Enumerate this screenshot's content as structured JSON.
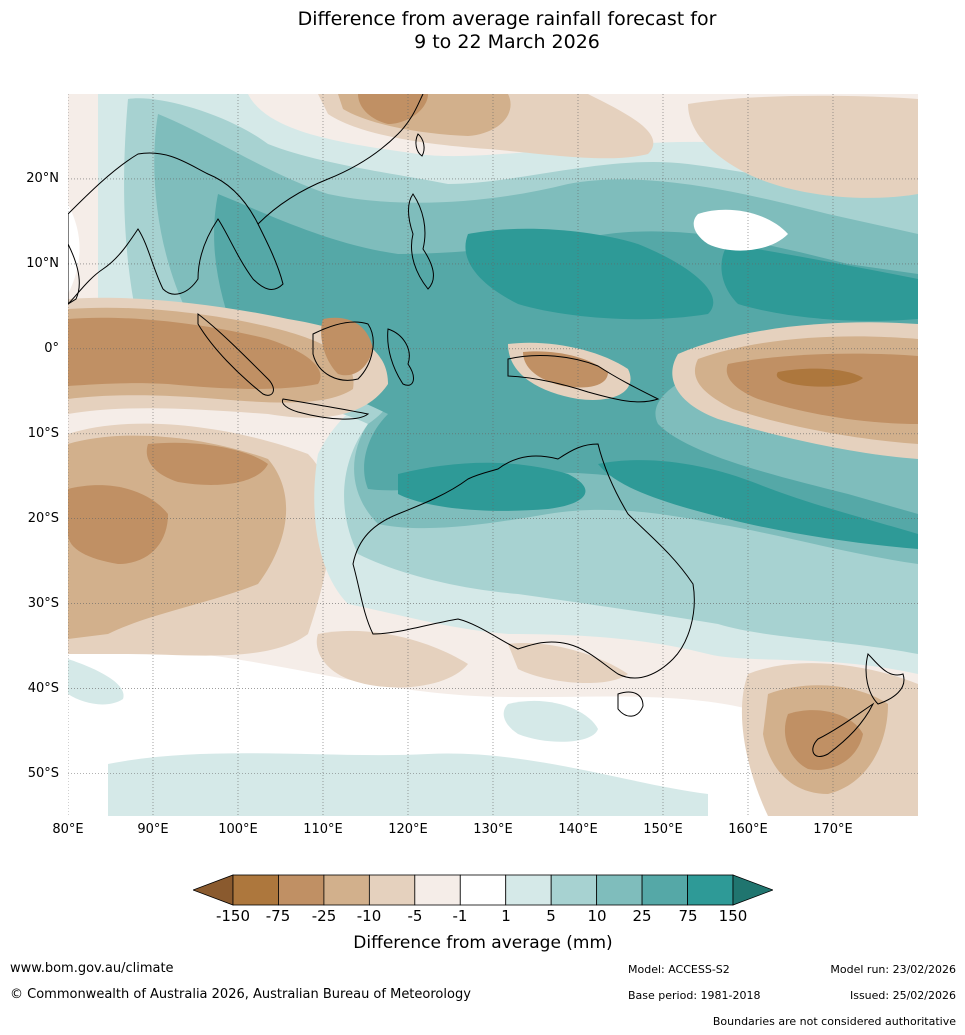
{
  "title": {
    "line1": "Difference from average rainfall forecast for",
    "line2": "9 to 22 March 2026"
  },
  "map": {
    "lat_labels": [
      "20°N",
      "10°N",
      "0°",
      "10°S",
      "20°S",
      "30°S",
      "40°S",
      "50°S"
    ],
    "lon_labels": [
      "80°E",
      "90°E",
      "100°E",
      "110°E",
      "120°E",
      "130°E",
      "140°E",
      "150°E",
      "160°E",
      "170°E"
    ],
    "lat_range": [
      -55,
      30
    ],
    "lon_range": [
      80,
      180
    ]
  },
  "colorbar": {
    "ticks": [
      "-150",
      "-75",
      "-25",
      "-10",
      "-5",
      "-1",
      "1",
      "5",
      "10",
      "25",
      "75",
      "150"
    ],
    "label": "Difference from average (mm)",
    "colors": {
      "extend_low": "#8a5a2e",
      "bins": [
        "#ad773d",
        "#c09064",
        "#d2b08c",
        "#e5d1be",
        "#f5ede8",
        "#ffffff",
        "#d5e9e8",
        "#a7d2d1",
        "#7fbdbc",
        "#55a8a7",
        "#2e9a97"
      ],
      "extend_high": "#20756f"
    }
  },
  "footer": {
    "website": "www.bom.gov.au/climate",
    "copyright": "© Commonwealth of Australia 2026, Australian Bureau of Meteorology",
    "model": "Model: ACCESS-S2",
    "base_period": "Base period: 1981-2018",
    "model_run": "Model run: 23/02/2026",
    "issued": "Issued: 25/02/2026",
    "disclaimer": "Boundaries are not considered authoritative"
  }
}
